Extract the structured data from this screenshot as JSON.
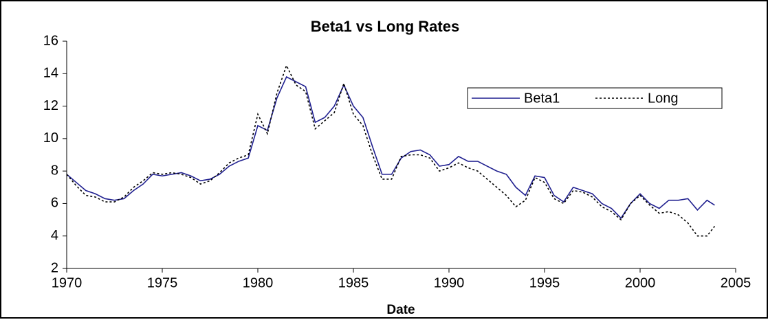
{
  "chart_data": {
    "type": "line",
    "title": "Beta1 vs Long Rates",
    "x_label": "Date",
    "x": [
      1970,
      1970.5,
      1971,
      1971.5,
      1972,
      1972.5,
      1973,
      1973.5,
      1974,
      1974.5,
      1975,
      1975.5,
      1976,
      1976.5,
      1977,
      1977.5,
      1978,
      1978.5,
      1979,
      1979.5,
      1980,
      1980.5,
      1981,
      1981.5,
      1982,
      1982.5,
      1983,
      1983.5,
      1984,
      1984.5,
      1985,
      1985.5,
      1986,
      1986.5,
      1987,
      1987.5,
      1988,
      1988.5,
      1989,
      1989.5,
      1990,
      1990.5,
      1991,
      1991.5,
      1992,
      1992.5,
      1993,
      1993.5,
      1994,
      1994.5,
      1995,
      1995.5,
      1996,
      1996.5,
      1997,
      1997.5,
      1998,
      1998.5,
      1999,
      1999.5,
      2000,
      2000.5,
      2001,
      2001.5,
      2002,
      2002.5,
      2003,
      2003.5,
      2003.9
    ],
    "series": [
      {
        "name": "Beta1",
        "color": "#1f1f8f",
        "style": "solid",
        "values": [
          7.8,
          7.3,
          6.8,
          6.6,
          6.3,
          6.2,
          6.3,
          6.8,
          7.2,
          7.8,
          7.7,
          7.8,
          7.9,
          7.7,
          7.4,
          7.5,
          7.8,
          8.3,
          8.6,
          8.8,
          10.8,
          10.5,
          12.5,
          13.8,
          13.5,
          13.2,
          11.0,
          11.3,
          12.0,
          13.3,
          12.0,
          11.3,
          9.5,
          7.8,
          7.8,
          8.8,
          9.2,
          9.3,
          9.0,
          8.3,
          8.4,
          8.9,
          8.6,
          8.6,
          8.3,
          8.0,
          7.8,
          7.0,
          6.5,
          7.7,
          7.6,
          6.5,
          6.1,
          7.0,
          6.8,
          6.6,
          6.0,
          5.7,
          5.1,
          6.0,
          6.6,
          6.0,
          5.7,
          6.2,
          6.2,
          6.3,
          5.6,
          6.2,
          5.9
        ]
      },
      {
        "name": "Long",
        "color": "#000000",
        "style": "dotted",
        "values": [
          7.8,
          7.1,
          6.5,
          6.4,
          6.1,
          6.1,
          6.4,
          7.0,
          7.4,
          7.9,
          7.8,
          7.9,
          7.8,
          7.6,
          7.2,
          7.4,
          7.9,
          8.5,
          8.8,
          9.0,
          11.5,
          10.3,
          12.8,
          14.5,
          13.3,
          12.9,
          10.6,
          11.1,
          11.6,
          13.4,
          11.5,
          10.8,
          9.0,
          7.5,
          7.5,
          8.9,
          9.0,
          9.0,
          8.8,
          8.0,
          8.2,
          8.5,
          8.2,
          8.0,
          7.5,
          7.0,
          6.5,
          5.8,
          6.2,
          7.6,
          7.3,
          6.3,
          6.0,
          6.8,
          6.7,
          6.4,
          5.8,
          5.5,
          5.0,
          6.0,
          6.5,
          5.9,
          5.4,
          5.5,
          5.3,
          4.8,
          4.0,
          4.0,
          4.6
        ]
      }
    ],
    "xlim": [
      1970,
      2005
    ],
    "xticks": [
      1970,
      1975,
      1980,
      1985,
      1990,
      1995,
      2000,
      2005
    ],
    "ylim": [
      2,
      16
    ],
    "yticks": [
      2,
      4,
      6,
      8,
      10,
      12,
      14,
      16
    ],
    "legend": "upper right"
  }
}
